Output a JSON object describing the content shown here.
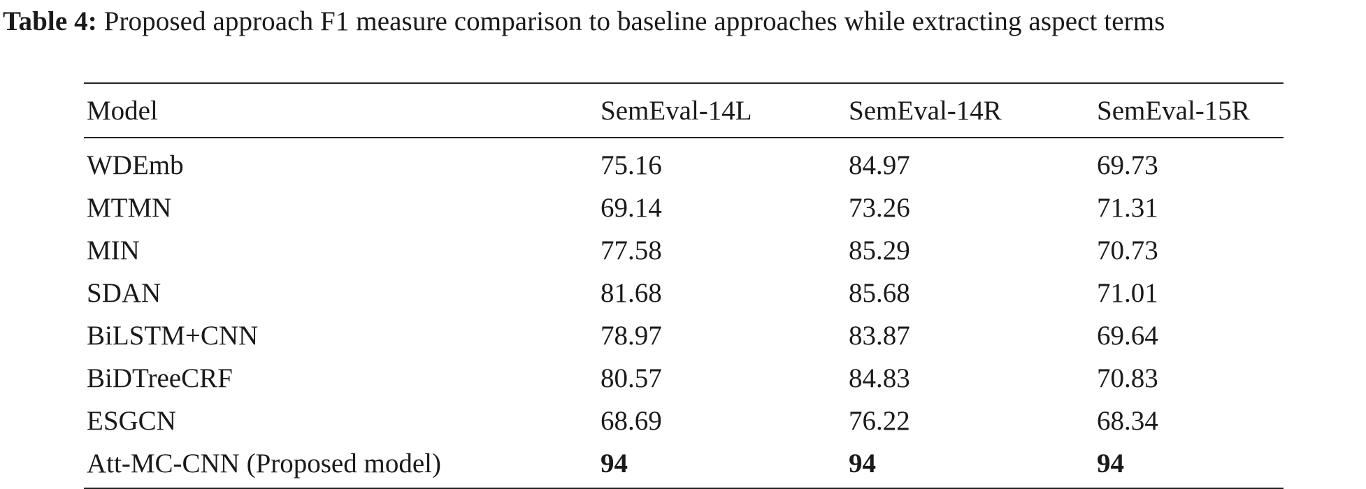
{
  "caption": {
    "label": "Table 4:",
    "text": " Proposed approach F1 measure comparison to baseline approaches while extracting aspect terms"
  },
  "table": {
    "headers": [
      "Model",
      "SemEval-14L",
      "SemEval-14R",
      "SemEval-15R"
    ],
    "rows": [
      {
        "model": "WDEmb",
        "l14": "75.16",
        "r14": "84.97",
        "r15": "69.73"
      },
      {
        "model": "MTMN",
        "l14": "69.14",
        "r14": "73.26",
        "r15": "71.31"
      },
      {
        "model": "MIN",
        "l14": "77.58",
        "r14": "85.29",
        "r15": "70.73"
      },
      {
        "model": "SDAN",
        "l14": "81.68",
        "r14": "85.68",
        "r15": "71.01"
      },
      {
        "model": "BiLSTM+CNN",
        "l14": "78.97",
        "r14": "83.87",
        "r15": "69.64"
      },
      {
        "model": "BiDTreeCRF",
        "l14": "80.57",
        "r14": "84.83",
        "r15": "70.83"
      },
      {
        "model": "ESGCN",
        "l14": "68.69",
        "r14": "76.22",
        "r15": "68.34"
      },
      {
        "model": "Att-MC-CNN (Proposed model)",
        "l14": "94",
        "r14": "94",
        "r15": "94"
      }
    ]
  }
}
